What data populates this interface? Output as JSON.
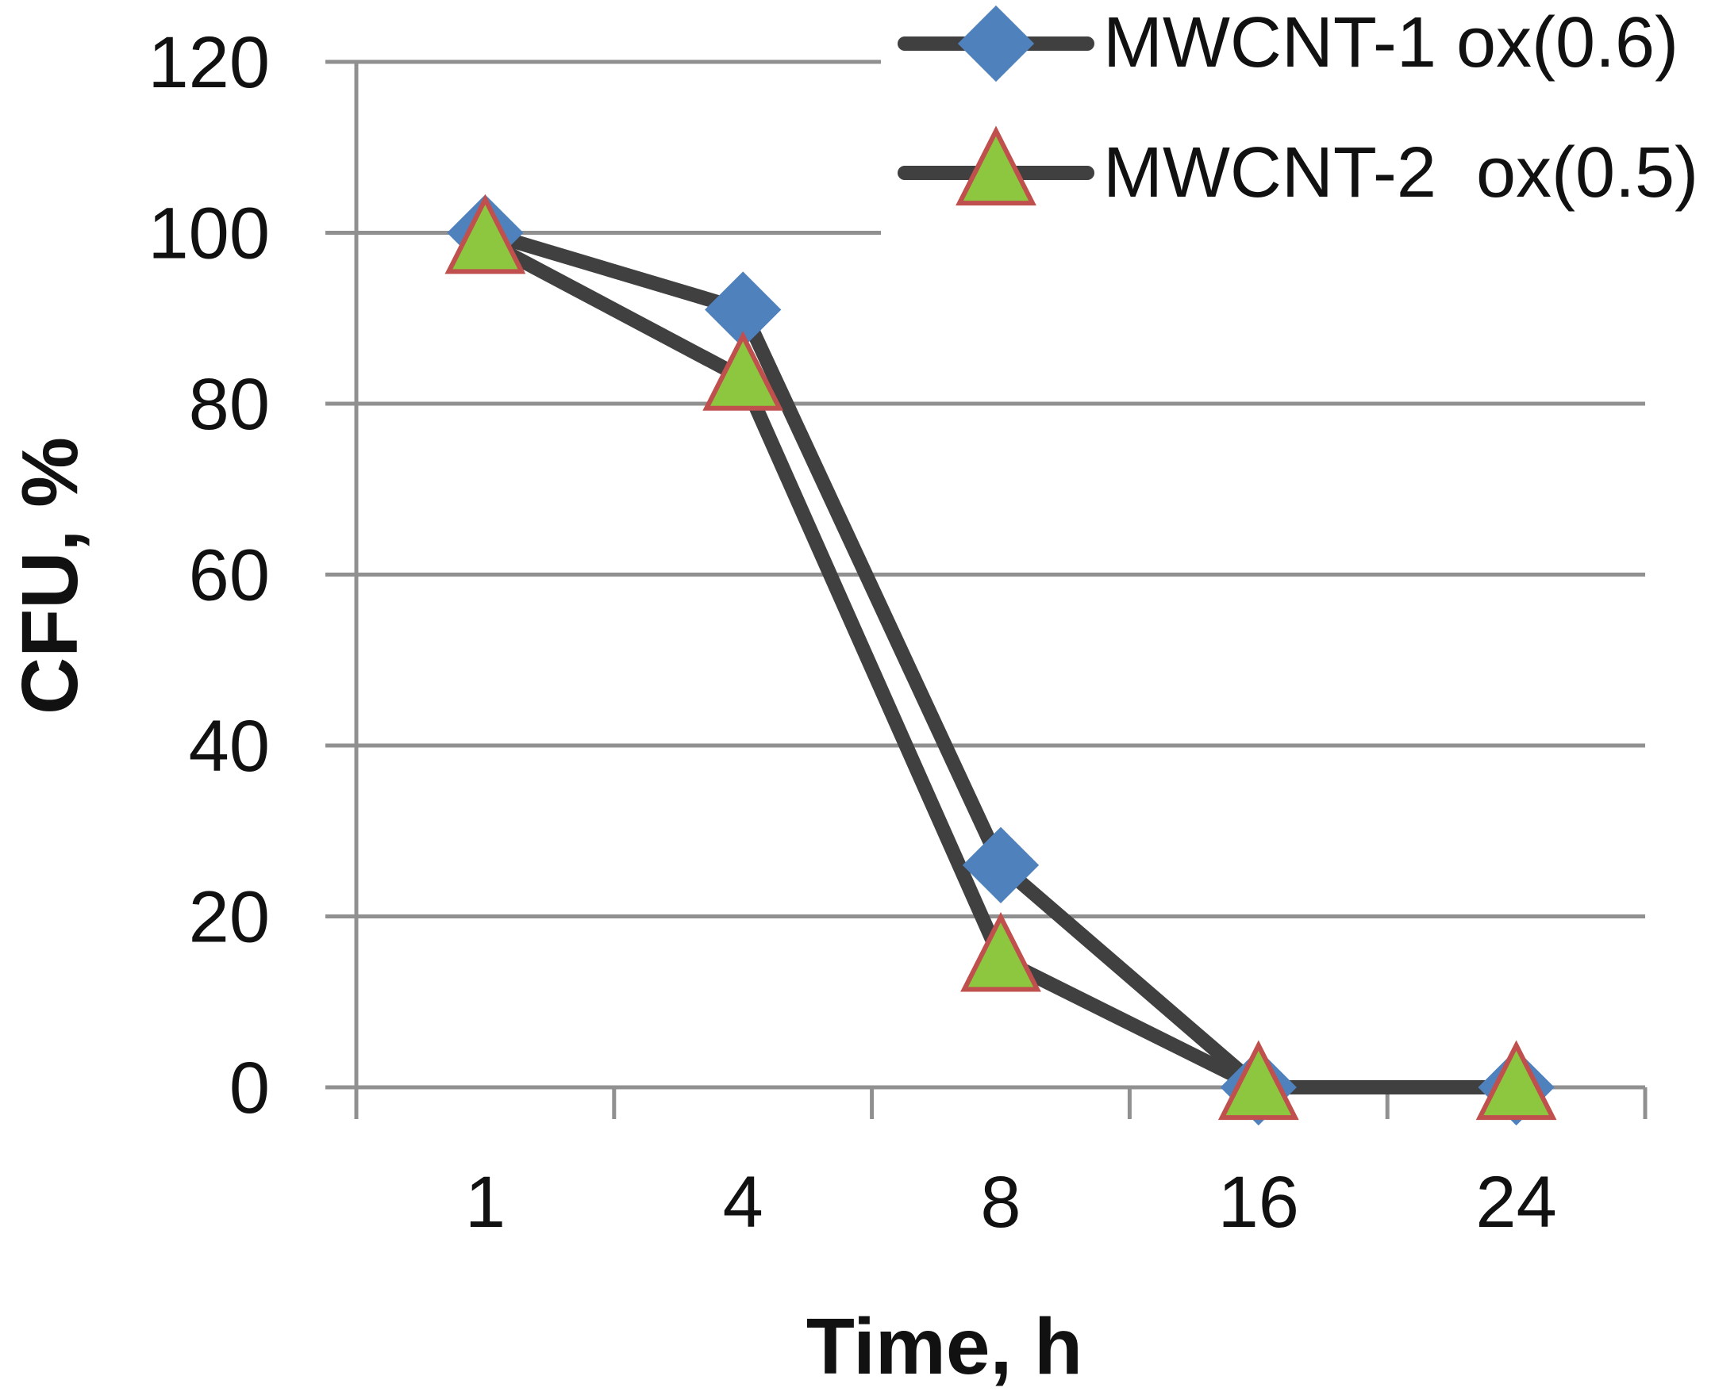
{
  "chart_data": {
    "type": "line",
    "title": "",
    "xlabel": "Time, h",
    "ylabel": "CFU, %",
    "categories": [
      "1",
      "4",
      "8",
      "16",
      "24"
    ],
    "ylim": [
      0,
      120
    ],
    "yticks": [
      "0",
      "20",
      "40",
      "60",
      "80",
      "100",
      "120"
    ],
    "grid": true,
    "legend_position": "top-right",
    "series": [
      {
        "name": "MWCNT-1 ox(0.6)",
        "values": [
          100,
          91,
          26,
          0,
          0
        ],
        "marker": "diamond",
        "line_color": "#404040",
        "marker_fill": "#4F81BD",
        "marker_stroke": "#4F81BD"
      },
      {
        "name": "MWCNT-2  ox(0.5)",
        "values": [
          99,
          83,
          15,
          0,
          0
        ],
        "marker": "triangle",
        "line_color": "#404040",
        "marker_fill": "#8DC63F",
        "marker_stroke": "#C0504D"
      }
    ]
  },
  "colors": {
    "grid": "#909090",
    "axis": "#909090"
  }
}
